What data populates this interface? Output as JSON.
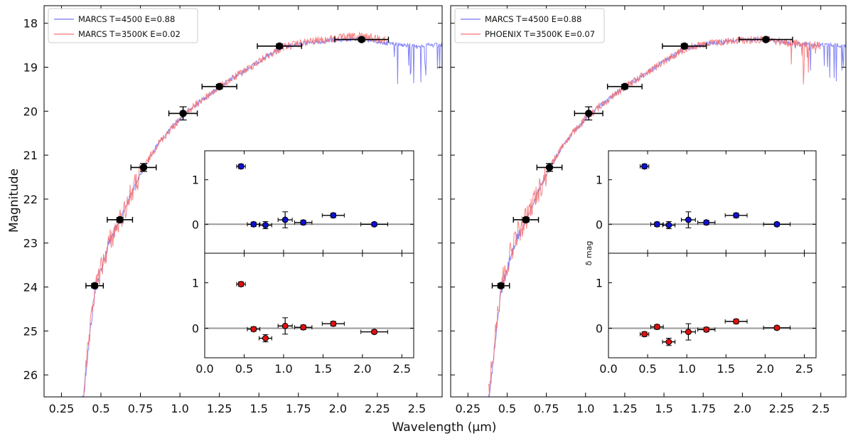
{
  "chart_data": {
    "type": "scatter",
    "xlabel": "Wavelength (μm)",
    "ylabel": "Magnitude",
    "photometry": [
      {
        "x": 0.46,
        "xerr": 0.055,
        "y": 23.97,
        "yerr": 0.05
      },
      {
        "x": 0.62,
        "xerr": 0.08,
        "y": 22.47,
        "yerr": 0.05
      },
      {
        "x": 0.77,
        "xerr": 0.08,
        "y": 21.28,
        "yerr": 0.09
      },
      {
        "x": 1.02,
        "xerr": 0.09,
        "y": 20.05,
        "yerr": 0.15
      },
      {
        "x": 1.25,
        "xerr": 0.11,
        "y": 19.44,
        "yerr": 0.05
      },
      {
        "x": 1.63,
        "xerr": 0.14,
        "y": 18.52,
        "yerr": 0.05
      },
      {
        "x": 2.15,
        "xerr": 0.17,
        "y": 18.37,
        "yerr": 0.04
      }
    ],
    "panels": [
      {
        "xlim": [
          0.14,
          2.66
        ],
        "ylim": [
          26.5,
          17.6
        ],
        "xticks": [
          0.25,
          0.5,
          0.75,
          1.0,
          1.25,
          1.5,
          1.75,
          2.0,
          2.25,
          2.5
        ],
        "xtick_labels": [
          "0.25",
          "0.5",
          "0.75",
          "1.0",
          "1.25",
          "1.5",
          "1.75",
          "2.0",
          "2.25",
          "2.5"
        ],
        "yticks": [
          18,
          19,
          20,
          21,
          22,
          23,
          24,
          25,
          26
        ],
        "ytick_labels": [
          "18",
          "19",
          "20",
          "21",
          "22",
          "23",
          "24",
          "25",
          "26"
        ],
        "legend": [
          "MARCS T=4500 E=0.88",
          "MARCS T=3500K E=0.02"
        ],
        "series_colors": [
          "#6f6ff5",
          "#f56f6f"
        ],
        "red_end": 2.3,
        "inset": {
          "xlim": [
            0.0,
            2.65
          ],
          "xticks": [
            0.0,
            0.5,
            1.0,
            1.5,
            2.0,
            2.5
          ],
          "xtick_labels": [
            "0.0",
            "0.5",
            "1.0",
            "1.5",
            "2.0",
            "2.5"
          ],
          "ylim": [
            -0.65,
            1.65
          ],
          "yticks": [
            0,
            1
          ],
          "ytick_labels": [
            "0",
            "1"
          ],
          "top_values": [
            1.3,
            0.0,
            -0.02,
            0.1,
            0.04,
            0.2,
            0.0
          ],
          "top_errs": [
            0.05,
            0.05,
            0.08,
            0.18,
            0.05,
            0.05,
            0.04
          ],
          "bottom_values": [
            0.97,
            -0.02,
            -0.22,
            0.05,
            0.02,
            0.1,
            -0.08
          ],
          "bottom_errs": [
            0.05,
            0.05,
            0.08,
            0.18,
            0.05,
            0.05,
            0.04
          ]
        }
      },
      {
        "xlim": [
          0.14,
          2.66
        ],
        "ylim": [
          26.5,
          17.6
        ],
        "xticks": [
          0.25,
          0.5,
          0.75,
          1.0,
          1.25,
          1.5,
          1.75,
          2.0,
          2.25,
          2.5
        ],
        "xtick_labels": [
          "0.25",
          "0.5",
          "0.75",
          "1.0",
          "1.25",
          "1.5",
          "1.75",
          "2.0",
          "2.25",
          "2.5"
        ],
        "legend": [
          "MARCS T=4500 E=0.88",
          "PHOENIX T=3500K E=0.07"
        ],
        "series_colors": [
          "#6f6ff5",
          "#f56f6f"
        ],
        "red_end": 2.5,
        "inset": {
          "xlim": [
            0.0,
            2.65
          ],
          "xticks": [
            0.0,
            0.5,
            1.0,
            1.5,
            2.0,
            2.5
          ],
          "xtick_labels": [
            "0.0",
            "0.5",
            "1.0",
            "1.5",
            "2.0",
            "2.5"
          ],
          "ylim": [
            -0.65,
            1.65
          ],
          "yticks": [
            0,
            1
          ],
          "ytick_labels": [
            "0",
            "1"
          ],
          "ylabel": "δ mag",
          "top_values": [
            1.3,
            0.0,
            -0.02,
            0.1,
            0.04,
            0.2,
            0.0
          ],
          "top_errs": [
            0.05,
            0.05,
            0.08,
            0.18,
            0.05,
            0.05,
            0.04
          ],
          "bottom_values": [
            -0.13,
            0.03,
            -0.3,
            -0.08,
            -0.03,
            0.15,
            0.01
          ],
          "bottom_errs": [
            0.05,
            0.05,
            0.08,
            0.18,
            0.05,
            0.05,
            0.04
          ]
        }
      }
    ]
  }
}
